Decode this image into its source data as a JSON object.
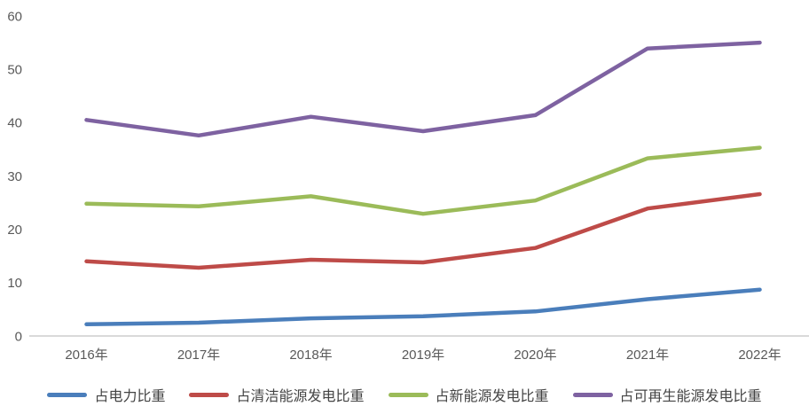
{
  "chart_data": {
    "type": "line",
    "title": "",
    "xlabel": "",
    "ylabel": "",
    "categories": [
      "2016年",
      "2017年",
      "2018年",
      "2019年",
      "2020年",
      "2021年",
      "2022年"
    ],
    "series": [
      {
        "name": "占电力比重",
        "color": "#4A7EBB",
        "values": [
          2.2,
          2.5,
          3.3,
          3.7,
          4.6,
          6.9,
          8.7
        ]
      },
      {
        "name": "占清洁能源发电比重",
        "color": "#BE4B48",
        "values": [
          14.0,
          12.8,
          14.3,
          13.8,
          16.5,
          23.9,
          26.6
        ]
      },
      {
        "name": "占新能源发电比重",
        "color": "#9BBB59",
        "values": [
          24.8,
          24.3,
          26.2,
          22.9,
          25.4,
          33.3,
          35.3
        ]
      },
      {
        "name": "占可再生能源发电比重",
        "color": "#7E62A1",
        "values": [
          40.5,
          37.6,
          41.1,
          38.4,
          41.4,
          53.9,
          55.0
        ]
      }
    ],
    "ylim": [
      0,
      60
    ],
    "yticks": [
      0,
      10,
      20,
      30,
      40,
      50,
      60
    ],
    "grid": false,
    "legend_position": "bottom",
    "axis_line_color": "#D9D9D9",
    "tick_label_color": "#595959",
    "legend_text_color": "#444444",
    "background_color": "#FFFFFF"
  }
}
